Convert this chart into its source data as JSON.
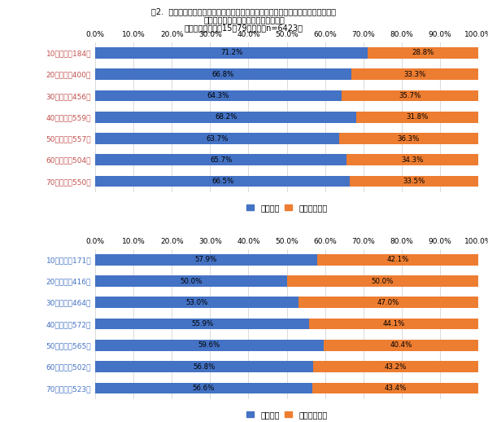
{
  "title_line1": "図2.  性年代別：公衆空間において「場所や状況を気にせず写真や動画を撑影する」",
  "title_line2": "他人の行為に対して気になるかどうか",
  "title_line3": "［調査対象：全国15～79歳男女・n=6423］",
  "legend_blue": "気になる",
  "legend_orange": "気にならない",
  "color_blue": "#4472C4",
  "color_orange": "#ED7D31",
  "female_labels": [
    "10代女性（184）",
    "20代女性（400）",
    "30代女性（456）",
    "40代女性（559）",
    "50代女性（557）",
    "60代女性（504）",
    "70代女性（550）"
  ],
  "female_blue": [
    71.2,
    66.8,
    64.3,
    68.2,
    63.7,
    65.7,
    66.5
  ],
  "female_orange": [
    28.8,
    33.3,
    35.7,
    31.8,
    36.3,
    34.3,
    33.5
  ],
  "male_labels": [
    "10代男性（171）",
    "20代男性（416）",
    "30代男性（464）",
    "40代男性（572）",
    "50代男性（565）",
    "60代男性（502）",
    "70代男性（523）"
  ],
  "male_blue": [
    57.9,
    50.0,
    53.0,
    55.9,
    59.6,
    56.8,
    56.6
  ],
  "male_orange": [
    42.1,
    50.0,
    47.0,
    44.1,
    40.4,
    43.2,
    43.4
  ],
  "label_color_female": "#C0504D",
  "label_color_male": "#4472C4",
  "bg_color": "#FFFFFF",
  "grid_color": "#CCCCCC",
  "bar_height": 0.52,
  "xlim": [
    0,
    100
  ],
  "xticks": [
    0,
    10,
    20,
    30,
    40,
    50,
    60,
    70,
    80,
    90,
    100
  ],
  "xtick_labels": [
    "0.0%",
    "10.0%",
    "20.0%",
    "30.0%",
    "40.0%",
    "50.0%",
    "60.0%",
    "70.0%",
    "80.0%",
    "90.0%",
    "100.0%"
  ],
  "font_size_title": 7.0,
  "font_size_tick": 6.5,
  "font_size_label": 6.5,
  "font_size_bar": 6.2,
  "font_size_legend": 7.0
}
